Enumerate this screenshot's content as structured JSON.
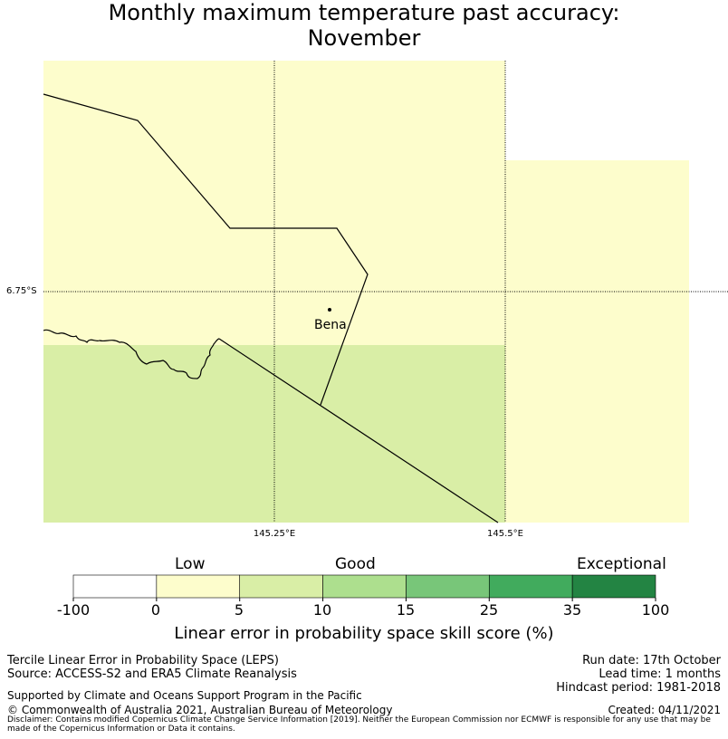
{
  "title": {
    "line1": "Monthly maximum temperature past accuracy:",
    "line2": "November"
  },
  "map": {
    "latitude_label": "6.75°S",
    "longitude_labels": [
      "145.25°E",
      "145.5°E"
    ],
    "place_name": "Bena",
    "colors": {
      "low": "#fdfdcc",
      "good": "#d9eea6",
      "boundary": "#000000"
    }
  },
  "colorbar": {
    "category_labels": [
      "Low",
      "Good",
      "Exceptional"
    ],
    "ticks": [
      "-100",
      "0",
      "5",
      "10",
      "15",
      "25",
      "35",
      "100"
    ],
    "colors": [
      "#ffffff",
      "#fdfdcc",
      "#d9eea6",
      "#addf8e",
      "#78c679",
      "#41ab5d",
      "#238443"
    ],
    "label": "Linear error in probability space skill score (%)"
  },
  "footer": {
    "method": "Tercile Linear Error in Probability Space (LEPS)",
    "source": "Source: ACCESS-S2 and ERA5 Climate Reanalysis",
    "support": "Supported by Climate and Oceans Support Program in the Pacific",
    "copyright": "© Commonwealth of Australia 2021, Australian Bureau of Meteorology",
    "run_date": "Run date: 17th October",
    "lead_time": "Lead time: 1 months",
    "hindcast": "Hindcast period: 1981-2018",
    "created": "Created: 04/11/2021",
    "disclaimer": "Disclaimer: Contains modified Copernicus Climate Change Service Information [2019]. Neither the European Commission nor ECMWF is responsible for any use that may be made of the Copernicus Information or Data it contains."
  }
}
